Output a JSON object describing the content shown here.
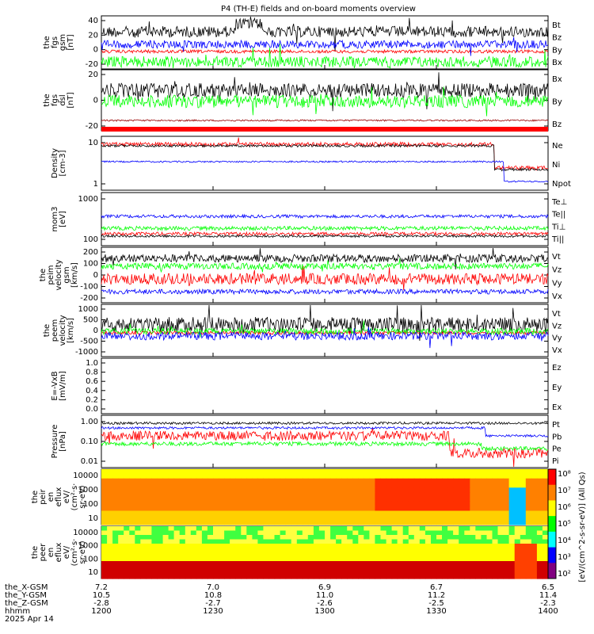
{
  "title": "P4 (TH-E) fields and on-board moments overview",
  "colors": {
    "black": "#000000",
    "red": "#ff0000",
    "green": "#00ff00",
    "blue": "#0000ff",
    "darkred": "#990000"
  },
  "panels": [
    {
      "ylabel": [
        "the",
        "fgs",
        "gsm",
        "[nT]"
      ],
      "ticks": [
        "40",
        "20",
        "0",
        "-20"
      ],
      "ylim": [
        -35,
        45
      ],
      "legend": [
        {
          "name": "Bt",
          "color": "black"
        },
        {
          "name": "Bz",
          "color": "red"
        },
        {
          "name": "By",
          "color": "green"
        },
        {
          "name": "Bx",
          "color": "blue"
        }
      ]
    },
    {
      "ylabel": [
        "the",
        "fgs",
        "dsl",
        "[nT]"
      ],
      "ticks": [
        "20",
        "0",
        "-20"
      ],
      "ylim": [
        -25,
        30
      ],
      "legend": [
        {
          "name": "Bx",
          "color": "black"
        },
        {
          "name": "By",
          "color": "green"
        },
        {
          "name": "Bz",
          "color": "darkred"
        }
      ]
    },
    {
      "ylabel": [
        "Density",
        "[cm-3]"
      ],
      "ticks": [
        "10",
        "1"
      ],
      "scale": "log",
      "legend": [
        {
          "name": "Ne",
          "color": "red"
        },
        {
          "name": "Ni",
          "color": "black"
        },
        {
          "name": "Npot",
          "color": "blue"
        }
      ]
    },
    {
      "ylabel": [
        "mom3",
        "[eV]"
      ],
      "ticks": [
        "1000",
        "100"
      ],
      "scale": "log",
      "legend": [
        {
          "name": "Te⊥",
          "color": "red"
        },
        {
          "name": "Te||",
          "color": "black"
        },
        {
          "name": "Ti⊥",
          "color": "green"
        },
        {
          "name": "Ti||",
          "color": "green"
        }
      ]
    },
    {
      "ylabel": [
        "the",
        "peim",
        "velocity",
        "gsm",
        "[km/s]"
      ],
      "ticks": [
        "200",
        "100",
        "0",
        "-100",
        "-200"
      ],
      "ylim": [
        -220,
        280
      ],
      "legend": [
        {
          "name": "Vt",
          "color": "black"
        },
        {
          "name": "Vz",
          "color": "red"
        },
        {
          "name": "Vy",
          "color": "green"
        },
        {
          "name": "Vx",
          "color": "blue"
        }
      ]
    },
    {
      "ylabel": [
        "the",
        "peem",
        "velocity",
        "[km/s]"
      ],
      "ticks": [
        "1000",
        "500",
        "0",
        "-500",
        "-1000"
      ],
      "ylim": [
        -1000,
        1000
      ],
      "legend": [
        {
          "name": "Vt",
          "color": "black"
        },
        {
          "name": "Vz",
          "color": "red"
        },
        {
          "name": "Vy",
          "color": "green"
        },
        {
          "name": "Vx",
          "color": "blue"
        }
      ]
    },
    {
      "ylabel": [
        "E=-VxB",
        "[mV/m]"
      ],
      "ticks": [
        "1.0",
        "0.8",
        "0.6",
        "0.4",
        "0.2",
        "0.0"
      ],
      "ylim": [
        0,
        1
      ],
      "legend": [
        {
          "name": "Ez",
          "color": "red"
        },
        {
          "name": "Ey",
          "color": "green"
        },
        {
          "name": "Ex",
          "color": "blue"
        }
      ]
    },
    {
      "ylabel": [
        "Pressure",
        "[nPa]"
      ],
      "ticks": [
        "1.00",
        "0.10",
        "0.01"
      ],
      "scale": "log",
      "legend": [
        {
          "name": "Pt",
          "color": "black"
        },
        {
          "name": "Pb",
          "color": "red"
        },
        {
          "name": "Pe",
          "color": "green"
        },
        {
          "name": "Pi",
          "color": "blue"
        }
      ]
    },
    {
      "ylabel": [
        "the",
        "peir",
        "en",
        "eflux",
        "eV/",
        "(cm²·s·",
        "sr·eV)"
      ],
      "ticks": [
        "10000",
        "1000",
        "100",
        "10"
      ],
      "scale": "log"
    },
    {
      "ylabel": [
        "the",
        "peer",
        "en",
        "eflux",
        "eV/",
        "(cm²·s·",
        "sr·eV)"
      ],
      "ticks": [
        "10000",
        "1000",
        "100",
        "10"
      ],
      "scale": "log"
    }
  ],
  "colorbar": {
    "ticks": [
      "10⁸",
      "10⁷",
      "10⁶",
      "10⁵",
      "10⁴",
      "10³",
      "10²"
    ],
    "label": "[eV/(cm^2-s-sr-eV)] (All Qs)"
  },
  "ephemeris": {
    "rows": [
      {
        "name": "the_X-GSM",
        "values": [
          "7.2",
          "7.0",
          "6.9",
          "6.7",
          "6.5"
        ]
      },
      {
        "name": "the_Y-GSM",
        "values": [
          "10.5",
          "10.8",
          "11.0",
          "11.2",
          "11.4"
        ]
      },
      {
        "name": "the_Z-GSM",
        "values": [
          "-2.8",
          "-2.7",
          "-2.6",
          "-2.5",
          "-2.3"
        ]
      },
      {
        "name": "hhmm",
        "values": [
          "1200",
          "1230",
          "1300",
          "1330",
          "1400"
        ]
      }
    ],
    "date": "2025 Apr 14"
  },
  "chart_data": {
    "type": "line",
    "title": "P4 (TH-E) fields and on-board moments overview",
    "x_time_labels": [
      "1200",
      "1230",
      "1300",
      "1330",
      "1400"
    ],
    "series_summary": [
      {
        "panel": "fgs gsm",
        "series": [
          {
            "name": "Bt",
            "level": 30
          },
          {
            "name": "Bz",
            "level": 0
          },
          {
            "name": "By",
            "level": -15
          },
          {
            "name": "Bx",
            "level": 15
          }
        ]
      },
      {
        "panel": "fgs dsl",
        "series": [
          {
            "name": "Bx",
            "level": 15
          },
          {
            "name": "By",
            "level": -5
          },
          {
            "name": "Bz",
            "level": -20
          }
        ]
      },
      {
        "panel": "Density",
        "series": [
          {
            "name": "Ne",
            "level": 15
          },
          {
            "name": "Ni",
            "level": 15
          },
          {
            "name": "Npot",
            "level": 3
          }
        ]
      },
      {
        "panel": "mom3",
        "series": [
          {
            "name": "Te⊥",
            "level": 60
          },
          {
            "name": "Te||",
            "level": 70
          },
          {
            "name": "Ti⊥",
            "level": 400
          },
          {
            "name": "Ti||",
            "level": 200
          }
        ]
      },
      {
        "panel": "peim velocity",
        "series": [
          {
            "name": "Vt",
            "level": 200
          },
          {
            "name": "Vz",
            "level": -40
          },
          {
            "name": "Vy",
            "level": 130
          },
          {
            "name": "Vx",
            "level": -120
          }
        ]
      },
      {
        "panel": "peem velocity",
        "series": [
          {
            "name": "Vt",
            "level": 150
          },
          {
            "name": "Vz",
            "level": -50
          },
          {
            "name": "Vy",
            "level": 50
          },
          {
            "name": "Vx",
            "level": -100
          }
        ]
      },
      {
        "panel": "Pressure",
        "series": [
          {
            "name": "Pt",
            "level": 0.8
          },
          {
            "name": "Pb",
            "level": 0.3
          },
          {
            "name": "Pe",
            "level": 0.1
          },
          {
            "name": "Pi",
            "level": 0.5
          }
        ]
      }
    ]
  }
}
